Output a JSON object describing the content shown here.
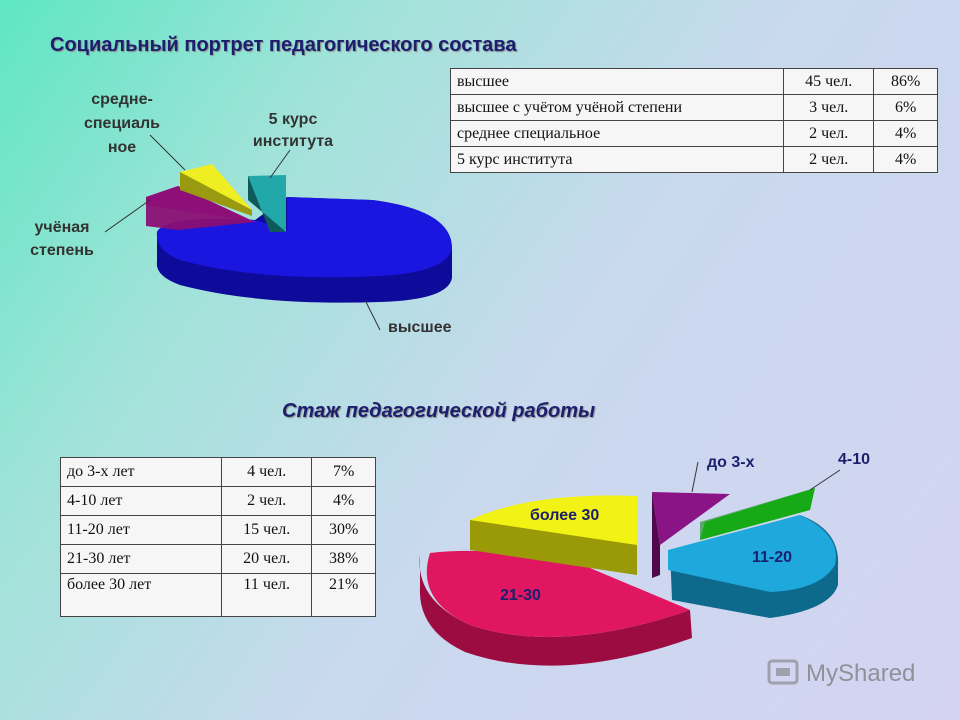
{
  "colors": {
    "vysshee": "#1a16e0",
    "uchenaya": "#c01aa4",
    "srednee": "#e8e820",
    "kurs5": "#1a8a8a",
    "do3": "#8a1486",
    "y4_10": "#22dd22",
    "y11_20": "#1ea8dc",
    "y21_30": "#e01660",
    "bolee30": "#f2f214"
  },
  "title1": "Социальный портрет педагогического состава",
  "title2": "Стаж педагогической работы",
  "table1": [
    [
      "высшее",
      "45 чел.",
      "86%"
    ],
    [
      "высшее с учётом учёной степени",
      "3 чел.",
      "6%"
    ],
    [
      "среднее специальное",
      "2 чел.",
      "4%"
    ],
    [
      "5 курс института",
      "2 чел.",
      "4%"
    ]
  ],
  "table2": [
    [
      "до 3-х лет",
      "4 чел.",
      "7%"
    ],
    [
      "4-10 лет",
      "2 чел.",
      "4%"
    ],
    [
      "11-20 лет",
      "15 чел.",
      "30%"
    ],
    [
      "21-30 лет",
      "20 чел.",
      "38%"
    ],
    [
      "более 30 лет",
      "11 чел.",
      "21%"
    ]
  ],
  "chart_data": [
    {
      "type": "pie",
      "categories": [
        "высшее",
        "учёная степень",
        "средне-специальное",
        "5 курс института"
      ],
      "values": [
        86,
        6,
        4,
        4
      ],
      "labels": {
        "vysshee": "высшее",
        "uchenaya": [
          "учёная",
          "степень"
        ],
        "srednee": [
          "средне-",
          "специаль",
          "ное"
        ],
        "kurs5": [
          "5 курс",
          "института"
        ]
      }
    },
    {
      "type": "pie",
      "categories": [
        "до 3-х",
        "4-10",
        "11-20",
        "21-30",
        "более 30"
      ],
      "values": [
        7,
        4,
        30,
        38,
        21
      ]
    }
  ],
  "watermark": "MyShared"
}
